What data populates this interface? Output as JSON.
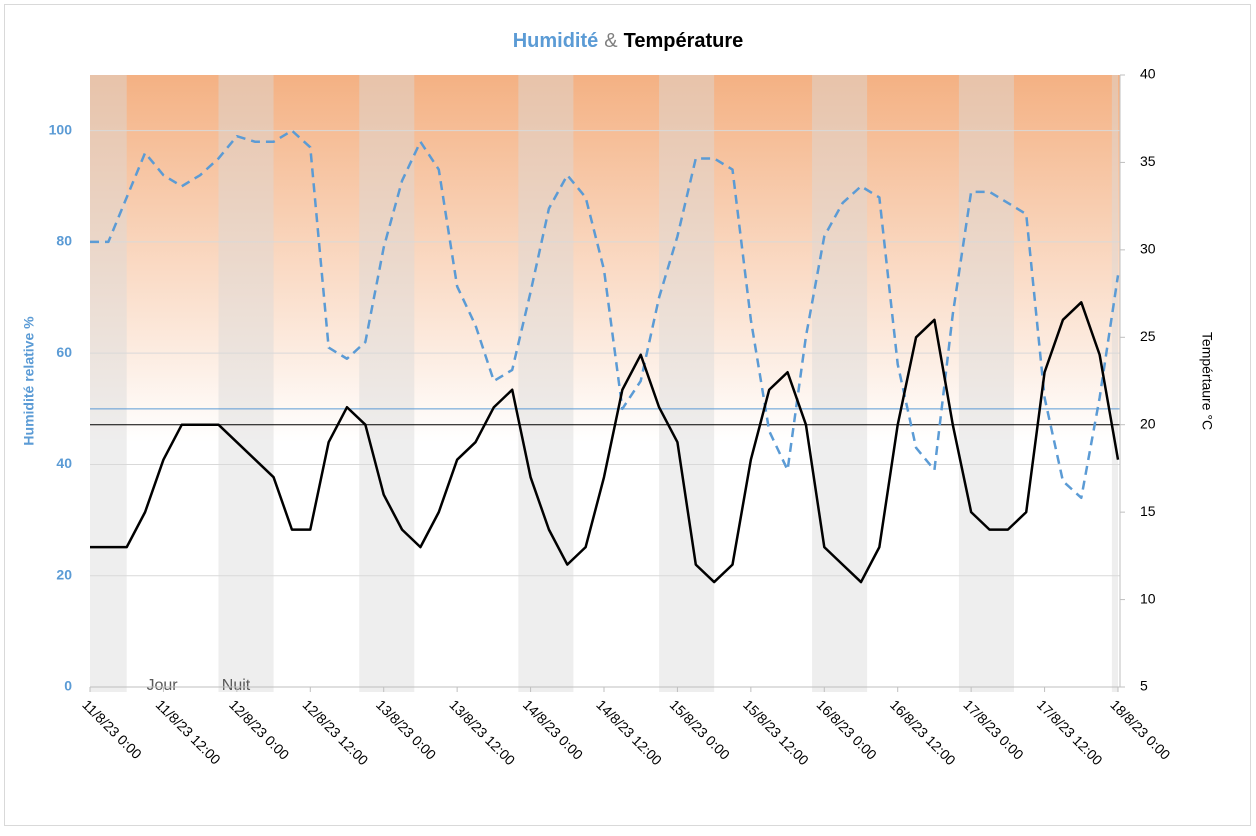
{
  "chart_data": {
    "type": "line",
    "title": {
      "humidity": "Humidité",
      "sep": "&",
      "temperature": "Température"
    },
    "y_label": "Humidité relative %",
    "y2_label": "Tempértaure °C",
    "band_labels": [
      "Jour",
      "Nuit"
    ],
    "x": [
      "11/8/23 0:00",
      "11/8/23 3:00",
      "11/8/23 6:00",
      "11/8/23 9:00",
      "11/8/23 12:00",
      "11/8/23 15:00",
      "11/8/23 18:00",
      "11/8/23 21:00",
      "12/8/23 0:00",
      "12/8/23 3:00",
      "12/8/23 6:00",
      "12/8/23 9:00",
      "12/8/23 12:00",
      "12/8/23 15:00",
      "12/8/23 18:00",
      "12/8/23 21:00",
      "13/8/23 0:00",
      "13/8/23 3:00",
      "13/8/23 6:00",
      "13/8/23 9:00",
      "13/8/23 12:00",
      "13/8/23 15:00",
      "13/8/23 18:00",
      "13/8/23 21:00",
      "14/8/23 0:00",
      "14/8/23 3:00",
      "14/8/23 6:00",
      "14/8/23 9:00",
      "14/8/23 12:00",
      "14/8/23 15:00",
      "14/8/23 18:00",
      "14/8/23 21:00",
      "15/8/23 0:00",
      "15/8/23 3:00",
      "15/8/23 6:00",
      "15/8/23 9:00",
      "15/8/23 12:00",
      "15/8/23 15:00",
      "15/8/23 18:00",
      "15/8/23 21:00",
      "16/8/23 0:00",
      "16/8/23 3:00",
      "16/8/23 6:00",
      "16/8/23 9:00",
      "16/8/23 12:00",
      "16/8/23 15:00",
      "16/8/23 18:00",
      "16/8/23 21:00",
      "17/8/23 0:00",
      "17/8/23 3:00",
      "17/8/23 6:00",
      "17/8/23 9:00",
      "17/8/23 12:00",
      "17/8/23 15:00",
      "17/8/23 18:00",
      "17/8/23 21:00",
      "18/8/23 0:00"
    ],
    "series": [
      {
        "color": "#5b9bd5",
        "dashed": true,
        "values": [
          80,
          80,
          88,
          96,
          92,
          90,
          92,
          95,
          99,
          98,
          98,
          100,
          97,
          61,
          59,
          62,
          79,
          91,
          98,
          93,
          72,
          65,
          55,
          57,
          71,
          86,
          92,
          88,
          75,
          50,
          55,
          70,
          81,
          95,
          95,
          93,
          66,
          46,
          39,
          63,
          81,
          87,
          90,
          88,
          58,
          43,
          39,
          67,
          89,
          89,
          87,
          85,
          52,
          37,
          34,
          52,
          74
        ]
      },
      {
        "color": "#000000",
        "dashed": false,
        "axis": "y2",
        "values": [
          13,
          13,
          13,
          15,
          18,
          20,
          20,
          20,
          19,
          18,
          17,
          14,
          14,
          19,
          21,
          20,
          16,
          14,
          13,
          15,
          18,
          19,
          21,
          22,
          17,
          14,
          12,
          13,
          17,
          22,
          24,
          21,
          19,
          12,
          11,
          12,
          18,
          22,
          23,
          20,
          13,
          12,
          11,
          13,
          20,
          25,
          26,
          20,
          15,
          14,
          14,
          15,
          23,
          26,
          27,
          24,
          18
        ]
      }
    ],
    "reference_lines": [
      {
        "value": 50,
        "color": "#5b9bd5"
      },
      {
        "value": 20,
        "axis": "y2",
        "color": "#000000"
      }
    ],
    "night_periods": [
      [
        "11/8/23 0:00",
        "11/8/23 6:00"
      ],
      [
        "11/8/23 21:00",
        "12/8/23 6:00"
      ],
      [
        "12/8/23 20:00",
        "13/8/23 5:00"
      ],
      [
        "13/8/23 22:00",
        "14/8/23 7:00"
      ],
      [
        "14/8/23 21:00",
        "15/8/23 6:00"
      ],
      [
        "15/8/23 22:00",
        "16/8/23 7:00"
      ],
      [
        "16/8/23 22:00",
        "17/8/23 7:00"
      ],
      [
        "17/8/23 23:00",
        "18/8/23 0:00"
      ]
    ],
    "xlim": [
      "11/8/23 0:00",
      "18/8/23 0:00"
    ],
    "xticks": [
      "11/8/23 0:00",
      "11/8/23 12:00",
      "12/8/23 0:00",
      "12/8/23 12:00",
      "13/8/23 0:00",
      "13/8/23 12:00",
      "14/8/23 0:00",
      "14/8/23 12:00",
      "15/8/23 0:00",
      "15/8/23 12:00",
      "16/8/23 0:00",
      "16/8/23 12:00",
      "17/8/23 0:00",
      "17/8/23 12:00",
      "18/8/23 0:00"
    ],
    "ylim": [
      0,
      110
    ],
    "yticks": [
      0,
      20,
      40,
      60,
      80,
      100
    ],
    "y2lim": [
      5,
      40
    ],
    "y2ticks": [
      5,
      10,
      15,
      20,
      25,
      30,
      35,
      40
    ],
    "grid": true
  }
}
